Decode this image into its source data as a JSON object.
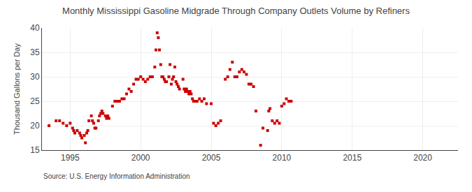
{
  "chart_data": {
    "type": "scatter",
    "title": "Monthly Mississippi Gasoline Midgrade Through Company Outlets Volume by Refiners",
    "ylabel": "Thousand Gallons per Day",
    "annotations": [
      "Source: U.S. Energy Information Administration"
    ],
    "xlim": [
      1993.0,
      2022.5
    ],
    "ylim": [
      15,
      40
    ],
    "xticks": [
      1995,
      2000,
      2005,
      2010,
      2015,
      2020
    ],
    "yticks": [
      15,
      20,
      25,
      30,
      35,
      40
    ],
    "grid": true,
    "color": "#cc0000",
    "marker": "square",
    "x": [
      1993.5,
      1994.0,
      1994.25,
      1994.5,
      1994.75,
      1995.0,
      1995.17,
      1995.25,
      1995.33,
      1995.5,
      1995.67,
      1995.75,
      1995.83,
      1996.0,
      1996.08,
      1996.17,
      1996.25,
      1996.33,
      1996.5,
      1996.58,
      1996.67,
      1996.75,
      1996.83,
      1997.0,
      1997.08,
      1997.17,
      1997.25,
      1997.33,
      1997.5,
      1997.58,
      1997.67,
      1997.75,
      1998.0,
      1998.17,
      1998.33,
      1998.5,
      1998.67,
      1998.83,
      1999.0,
      1999.17,
      1999.33,
      1999.5,
      1999.67,
      1999.83,
      2000.0,
      2000.17,
      2000.33,
      2000.5,
      2000.67,
      2000.83,
      2001.0,
      2001.08,
      2001.17,
      2001.25,
      2001.33,
      2001.42,
      2001.5,
      2001.58,
      2001.67,
      2001.75,
      2001.83,
      2002.0,
      2002.08,
      2002.17,
      2002.25,
      2002.33,
      2002.42,
      2002.5,
      2002.58,
      2002.67,
      2002.75,
      2003.0,
      2003.08,
      2003.17,
      2003.25,
      2003.33,
      2003.42,
      2003.5,
      2003.58,
      2003.67,
      2003.75,
      2003.83,
      2004.0,
      2004.17,
      2004.33,
      2004.5,
      2004.67,
      2005.0,
      2005.17,
      2005.33,
      2005.5,
      2005.67,
      2006.0,
      2006.17,
      2006.33,
      2006.5,
      2006.67,
      2006.83,
      2007.0,
      2007.17,
      2007.33,
      2007.5,
      2007.67,
      2007.83,
      2008.0,
      2008.17,
      2008.5,
      2008.67,
      2009.0,
      2009.08,
      2009.17,
      2009.33,
      2009.5,
      2009.67,
      2009.83,
      2010.0,
      2010.17,
      2010.33,
      2010.5,
      2010.67
    ],
    "values": [
      20.0,
      21.0,
      21.0,
      20.5,
      20.0,
      20.5,
      19.5,
      19.0,
      18.5,
      19.0,
      18.5,
      18.0,
      17.5,
      18.0,
      16.5,
      18.5,
      19.0,
      21.0,
      22.0,
      21.0,
      20.5,
      19.5,
      19.5,
      21.0,
      22.0,
      22.5,
      23.0,
      22.5,
      22.0,
      21.5,
      22.0,
      21.5,
      24.0,
      25.0,
      25.0,
      25.0,
      25.5,
      25.5,
      26.5,
      27.5,
      27.0,
      28.5,
      29.5,
      29.5,
      30.0,
      29.5,
      29.0,
      29.5,
      30.0,
      30.0,
      32.0,
      35.5,
      39.0,
      38.0,
      35.5,
      32.5,
      30.0,
      30.0,
      29.5,
      29.0,
      29.0,
      30.0,
      32.5,
      28.5,
      29.5,
      30.0,
      32.0,
      29.0,
      28.5,
      28.0,
      27.5,
      29.5,
      27.5,
      27.0,
      27.5,
      27.0,
      26.5,
      27.0,
      26.5,
      25.5,
      25.0,
      25.0,
      25.0,
      25.5,
      25.0,
      25.5,
      24.5,
      24.5,
      20.5,
      20.0,
      20.5,
      21.0,
      29.5,
      30.0,
      31.5,
      33.0,
      30.0,
      30.0,
      31.0,
      31.5,
      31.0,
      30.5,
      28.5,
      28.5,
      28.0,
      23.0,
      16.0,
      19.5,
      19.0,
      23.0,
      23.5,
      21.0,
      20.5,
      21.0,
      20.5,
      24.0,
      24.5,
      25.5,
      25.0,
      25.0
    ]
  }
}
